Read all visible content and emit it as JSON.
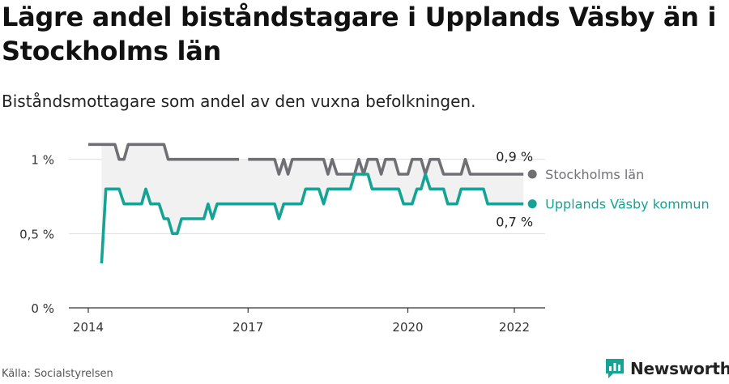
{
  "title": "Lägre andel biståndstagare i Upplands Väsby än i Stockholms län",
  "subtitle": "Biståndsmottagare som andel av den vuxna befolkningen.",
  "source": "Källa: Socialstyrelsen",
  "brand": "Newsworthy",
  "colors": {
    "stockholm": "#707074",
    "vasby": "#14a394",
    "band": "#f1f1f2",
    "grid": "#dedede",
    "axis": "#333333",
    "brand": "#14a394"
  },
  "chart_data": {
    "type": "line",
    "ylim": [
      0,
      1.2
    ],
    "xlim": [
      2014,
      2022.4
    ],
    "yticks": [
      {
        "value": 0,
        "label": "0 %"
      },
      {
        "value": 0.5,
        "label": "0,5 %"
      },
      {
        "value": 1,
        "label": "1 %"
      }
    ],
    "xticks": [
      {
        "value": 2014,
        "label": "2014"
      },
      {
        "value": 2017,
        "label": "2017"
      },
      {
        "value": 2020,
        "label": "2020"
      },
      {
        "value": 2022,
        "label": "2022"
      }
    ],
    "series": [
      {
        "name": "Stockholms län",
        "end_label": "0,9 %",
        "points": [
          [
            2014.0,
            1.1
          ],
          [
            2014.5,
            1.1
          ],
          [
            2014.58,
            1.0
          ],
          [
            2014.67,
            1.0
          ],
          [
            2014.75,
            1.1
          ],
          [
            2015.42,
            1.1
          ],
          [
            2015.5,
            1.0
          ],
          [
            2016.83,
            1.0
          ],
          null,
          [
            2017.0,
            1.0
          ],
          [
            2017.5,
            1.0
          ],
          [
            2017.58,
            0.9
          ],
          [
            2017.67,
            1.0
          ],
          [
            2017.75,
            0.9
          ],
          [
            2017.83,
            1.0
          ],
          [
            2018.42,
            1.0
          ],
          [
            2018.5,
            0.9
          ],
          [
            2018.58,
            1.0
          ],
          [
            2018.67,
            0.9
          ],
          [
            2019.0,
            0.9
          ],
          [
            2019.08,
            1.0
          ],
          [
            2019.17,
            0.9
          ],
          [
            2019.25,
            1.0
          ],
          [
            2019.42,
            1.0
          ],
          [
            2019.5,
            0.9
          ],
          [
            2019.58,
            1.0
          ],
          [
            2019.75,
            1.0
          ],
          [
            2019.83,
            0.9
          ],
          [
            2020.0,
            0.9
          ],
          [
            2020.08,
            1.0
          ],
          [
            2020.25,
            1.0
          ],
          [
            2020.33,
            0.9
          ],
          [
            2020.42,
            1.0
          ],
          [
            2020.58,
            1.0
          ],
          [
            2020.67,
            0.9
          ],
          [
            2021.0,
            0.9
          ],
          [
            2021.08,
            1.0
          ],
          [
            2021.17,
            0.9
          ],
          [
            2022.17,
            0.9
          ]
        ]
      },
      {
        "name": "Upplands Väsby kommun",
        "end_label": "0,7 %",
        "points": [
          [
            2014.25,
            0.3
          ],
          [
            2014.33,
            0.8
          ],
          [
            2014.58,
            0.8
          ],
          [
            2014.67,
            0.7
          ],
          [
            2015.0,
            0.7
          ],
          [
            2015.08,
            0.8
          ],
          [
            2015.17,
            0.7
          ],
          [
            2015.33,
            0.7
          ],
          [
            2015.42,
            0.6
          ],
          [
            2015.5,
            0.6
          ],
          [
            2015.58,
            0.5
          ],
          [
            2015.67,
            0.5
          ],
          [
            2015.75,
            0.6
          ],
          [
            2016.17,
            0.6
          ],
          [
            2016.25,
            0.7
          ],
          [
            2016.33,
            0.6
          ],
          [
            2016.42,
            0.7
          ],
          [
            2017.5,
            0.7
          ],
          [
            2017.58,
            0.6
          ],
          [
            2017.67,
            0.7
          ],
          [
            2018.0,
            0.7
          ],
          [
            2018.08,
            0.8
          ],
          [
            2018.33,
            0.8
          ],
          [
            2018.42,
            0.7
          ],
          [
            2018.5,
            0.8
          ],
          [
            2018.92,
            0.8
          ],
          [
            2019.0,
            0.9
          ],
          [
            2019.25,
            0.9
          ],
          [
            2019.33,
            0.8
          ],
          [
            2019.83,
            0.8
          ],
          [
            2019.92,
            0.7
          ],
          [
            2020.08,
            0.7
          ],
          [
            2020.17,
            0.8
          ],
          [
            2020.25,
            0.8
          ],
          [
            2020.33,
            0.9
          ],
          [
            2020.42,
            0.8
          ],
          [
            2020.67,
            0.8
          ],
          [
            2020.75,
            0.7
          ],
          [
            2020.92,
            0.7
          ],
          [
            2021.0,
            0.8
          ],
          [
            2021.42,
            0.8
          ],
          [
            2021.5,
            0.7
          ],
          [
            2022.17,
            0.7
          ]
        ]
      }
    ]
  }
}
